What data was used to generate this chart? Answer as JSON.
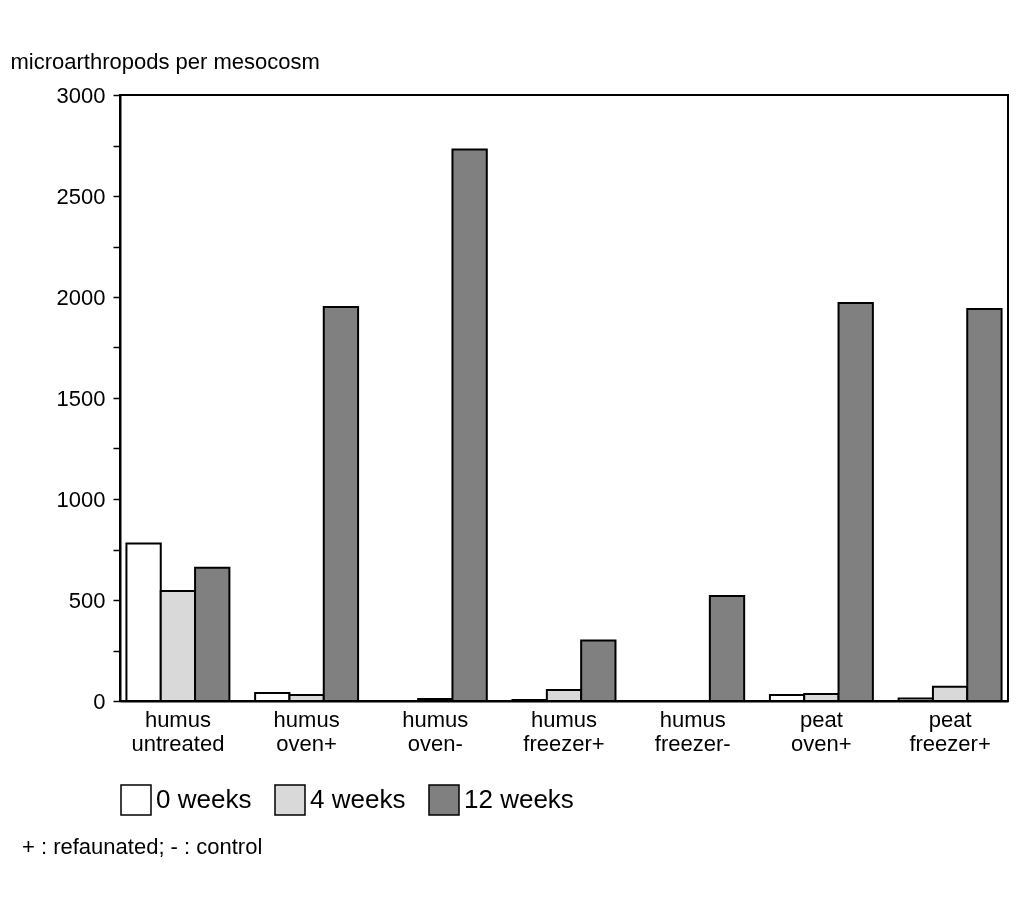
{
  "chart_data": {
    "type": "bar",
    "ylabel": "microarthropods per mesocosm",
    "categories": [
      "humus untreated",
      "humus oven+",
      "humus oven-",
      "humus freezer+",
      "humus freezer-",
      "peat oven+",
      "peat freezer+"
    ],
    "series": [
      {
        "name": "0 weeks",
        "color": "#ffffff",
        "values": [
          780,
          40,
          0,
          5,
          0,
          30,
          12
        ]
      },
      {
        "name": "4 weeks",
        "color": "#d9d9d9",
        "values": [
          545,
          30,
          10,
          55,
          0,
          35,
          70
        ]
      },
      {
        "name": "12 weeks",
        "color": "#808080",
        "values": [
          660,
          1950,
          2730,
          300,
          520,
          1970,
          1940
        ]
      }
    ],
    "ylim": [
      0,
      3000
    ],
    "yticks": [
      0,
      {
        "value": 250,
        "label": null
      },
      500,
      {
        "value": 750,
        "label": null
      },
      1000,
      {
        "value": 1250,
        "label": null
      },
      1500,
      {
        "value": 1750,
        "label": null
      },
      2000,
      {
        "value": 2250,
        "label": null
      },
      2500,
      {
        "value": 2750,
        "label": null
      },
      3000
    ],
    "legend": "bottom",
    "grid": false,
    "annotations": [
      "+ : refaunated; - : control"
    ]
  }
}
